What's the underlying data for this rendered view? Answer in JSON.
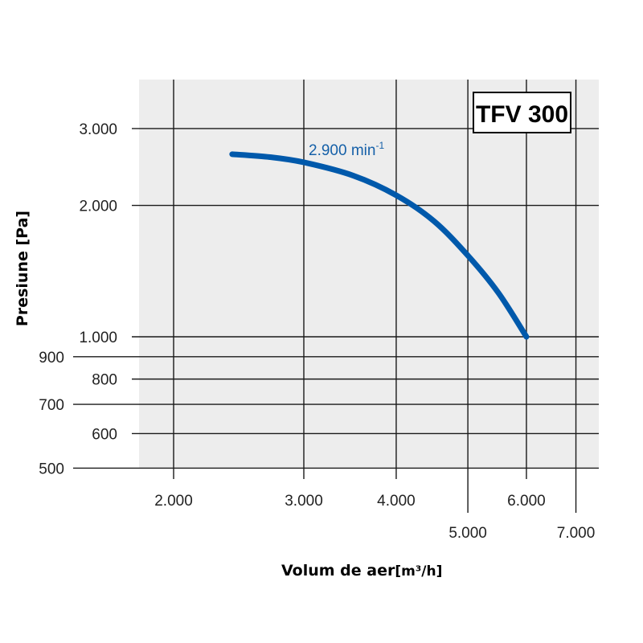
{
  "chart_data": {
    "type": "line",
    "title": "",
    "model_label": "TFV 300",
    "xlabel": "Volum de aer",
    "xlabel_unit": "[m³/h]",
    "ylabel": "Presiune [Pa]",
    "xscale": "log",
    "yscale": "log",
    "xlim": [
      1750,
      8000
    ],
    "ylim": [
      500,
      3700
    ],
    "grid": true,
    "x_ticks": [
      {
        "value": 2000,
        "label": "2.000",
        "row": 1
      },
      {
        "value": 3000,
        "label": "3.000",
        "row": 1
      },
      {
        "value": 4000,
        "label": "4.000",
        "row": 1
      },
      {
        "value": 5000,
        "label": "5.000",
        "row": 2
      },
      {
        "value": 6000,
        "label": "6.000",
        "row": 1
      },
      {
        "value": 7000,
        "label": "7.000",
        "row": 2
      }
    ],
    "y_ticks": [
      {
        "value": 3000,
        "label": "3.000",
        "col": 1
      },
      {
        "value": 2000,
        "label": "2.000",
        "col": 1
      },
      {
        "value": 1000,
        "label": "1.000",
        "col": 1
      },
      {
        "value": 900,
        "label": "900",
        "col": 2
      },
      {
        "value": 800,
        "label": "800",
        "col": 1
      },
      {
        "value": 700,
        "label": "700",
        "col": 2
      },
      {
        "value": 600,
        "label": "600",
        "col": 1
      },
      {
        "value": 500,
        "label": "500",
        "col": 2
      }
    ],
    "series": [
      {
        "name": "2.900 min-1",
        "label_main": "2.900 min",
        "label_sup": "-1",
        "color": "#0059ab",
        "x": [
          2400,
          2700,
          3000,
          3500,
          4000,
          4500,
          5000,
          5500,
          6000
        ],
        "y": [
          2620,
          2580,
          2510,
          2340,
          2110,
          1840,
          1535,
          1260,
          1000
        ]
      }
    ]
  },
  "colors": {
    "plot_background": "#ededed",
    "grid": "#1a1a1a",
    "curve": "#0059ab"
  }
}
